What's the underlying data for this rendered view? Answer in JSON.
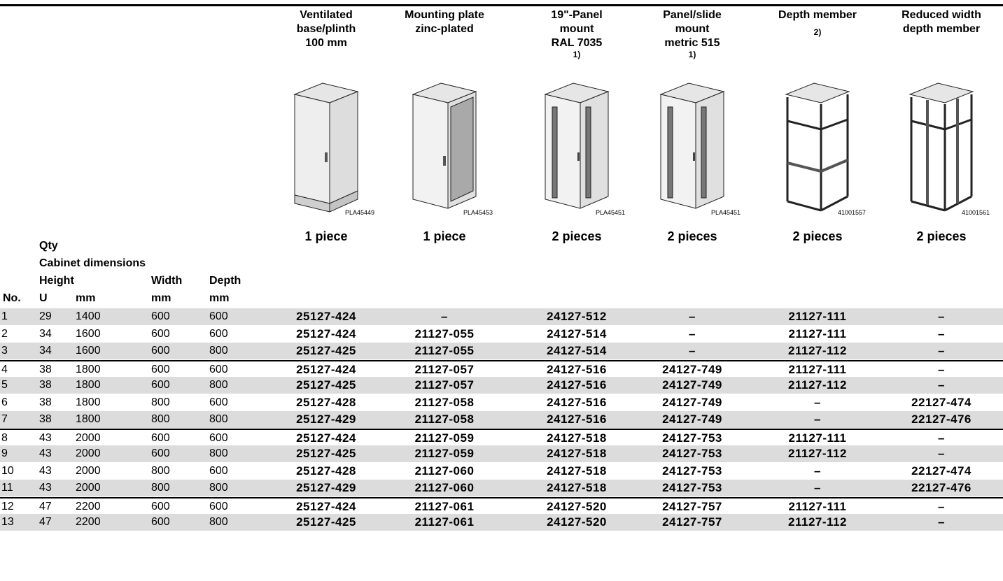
{
  "columns": [
    {
      "title_lines": [
        "Ventilated",
        "base/plinth",
        "100 mm"
      ],
      "footnote": "",
      "image_code": "PLA45449",
      "image_type": "plinth",
      "qty": "1 piece"
    },
    {
      "title_lines": [
        "Mounting plate",
        "zinc-plated"
      ],
      "footnote": "",
      "image_code": "PLA45453",
      "image_type": "plate",
      "qty": "1 piece"
    },
    {
      "title_lines": [
        "19\"-Panel",
        "mount",
        "RAL 7035"
      ],
      "footnote": "1)",
      "image_code": "PLA45451",
      "image_type": "rails",
      "qty": "2 pieces"
    },
    {
      "title_lines": [
        "Panel/slide",
        "mount",
        "metric 515"
      ],
      "footnote": "1)",
      "image_code": "PLA45451",
      "image_type": "rails",
      "qty": "2 pieces"
    },
    {
      "title_lines": [
        "Depth member"
      ],
      "footnote": "2)",
      "image_code": "41001557",
      "image_type": "frame",
      "qty": "2 pieces"
    },
    {
      "title_lines": [
        "Reduced width",
        "depth member"
      ],
      "footnote": "",
      "image_code": "41001561",
      "image_type": "frame2",
      "qty": "2 pieces"
    }
  ],
  "labels": {
    "qty": "Qty",
    "cabinet_dimensions": "Cabinet dimensions",
    "height": "Height",
    "width": "Width",
    "depth": "Depth",
    "no": "No.",
    "u": "U",
    "mm_h": "mm",
    "mm_w": "mm",
    "mm_d": "mm"
  },
  "rows": [
    {
      "no": "1",
      "u": "29",
      "height": "1400",
      "width": "600",
      "depth": "600",
      "codes": [
        "25127-424",
        "–",
        "24127-512",
        "–",
        "21127-111",
        "–"
      ]
    },
    {
      "no": "2",
      "u": "34",
      "height": "1600",
      "width": "600",
      "depth": "600",
      "codes": [
        "25127-424",
        "21127-055",
        "24127-514",
        "–",
        "21127-111",
        "–"
      ]
    },
    {
      "no": "3",
      "u": "34",
      "height": "1600",
      "width": "600",
      "depth": "800",
      "codes": [
        "25127-425",
        "21127-055",
        "24127-514",
        "–",
        "21127-112",
        "–"
      ]
    },
    {
      "no": "4",
      "u": "38",
      "height": "1800",
      "width": "600",
      "depth": "600",
      "codes": [
        "25127-424",
        "21127-057",
        "24127-516",
        "24127-749",
        "21127-111",
        "–"
      ]
    },
    {
      "no": "5",
      "u": "38",
      "height": "1800",
      "width": "600",
      "depth": "800",
      "codes": [
        "25127-425",
        "21127-057",
        "24127-516",
        "24127-749",
        "21127-112",
        "–"
      ]
    },
    {
      "no": "6",
      "u": "38",
      "height": "1800",
      "width": "800",
      "depth": "600",
      "codes": [
        "25127-428",
        "21127-058",
        "24127-516",
        "24127-749",
        "–",
        "22127-474"
      ]
    },
    {
      "no": "7",
      "u": "38",
      "height": "1800",
      "width": "800",
      "depth": "800",
      "codes": [
        "25127-429",
        "21127-058",
        "24127-516",
        "24127-749",
        "–",
        "22127-476"
      ]
    },
    {
      "no": "8",
      "u": "43",
      "height": "2000",
      "width": "600",
      "depth": "600",
      "codes": [
        "25127-424",
        "21127-059",
        "24127-518",
        "24127-753",
        "21127-111",
        "–"
      ]
    },
    {
      "no": "9",
      "u": "43",
      "height": "2000",
      "width": "600",
      "depth": "800",
      "codes": [
        "25127-425",
        "21127-059",
        "24127-518",
        "24127-753",
        "21127-112",
        "–"
      ]
    },
    {
      "no": "10",
      "u": "43",
      "height": "2000",
      "width": "800",
      "depth": "600",
      "codes": [
        "25127-428",
        "21127-060",
        "24127-518",
        "24127-753",
        "–",
        "22127-474"
      ]
    },
    {
      "no": "11",
      "u": "43",
      "height": "2000",
      "width": "800",
      "depth": "800",
      "codes": [
        "25127-429",
        "21127-060",
        "24127-518",
        "24127-753",
        "–",
        "22127-476"
      ]
    },
    {
      "no": "12",
      "u": "47",
      "height": "2200",
      "width": "600",
      "depth": "600",
      "codes": [
        "25127-424",
        "21127-061",
        "24127-520",
        "24127-757",
        "21127-111",
        "–"
      ]
    },
    {
      "no": "13",
      "u": "47",
      "height": "2200",
      "width": "600",
      "depth": "800",
      "codes": [
        "25127-425",
        "21127-061",
        "24127-520",
        "24127-757",
        "21127-112",
        "–"
      ]
    }
  ]
}
